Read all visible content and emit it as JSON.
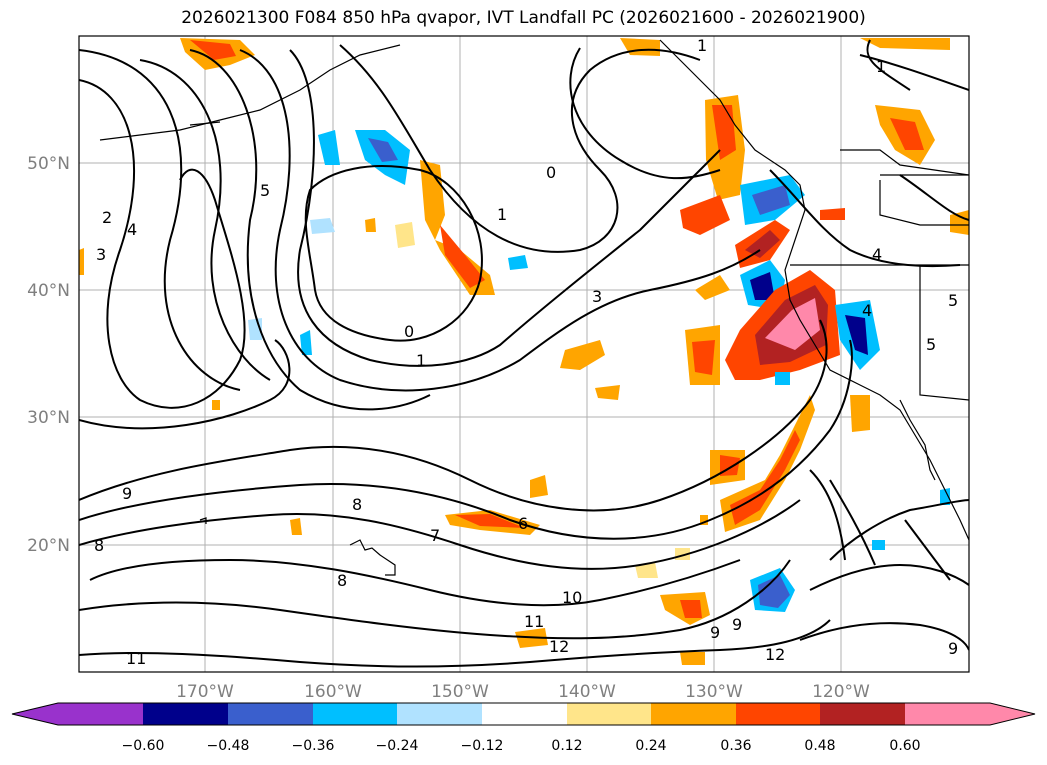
{
  "title": "2026021300 F084 850 hPa qvapor, IVT Landfall PC (2026021600 - 2026021900)",
  "map": {
    "lon_labels": [
      "170°W",
      "160°W",
      "150°W",
      "140°W",
      "130°W",
      "120°W"
    ],
    "lat_labels": [
      "50°N",
      "40°N",
      "30°N",
      "20°N"
    ],
    "contour_labels": [
      "0",
      "0",
      "1",
      "1",
      "1",
      "1",
      "2",
      "3",
      "3",
      "4",
      "4",
      "4",
      "5",
      "5",
      "5",
      "6",
      "7",
      "8",
      "8",
      "8",
      "9",
      "9",
      "9",
      "9",
      "10",
      "11",
      "11",
      "12",
      "12"
    ]
  },
  "colorbar": {
    "ticks": [
      "−0.60",
      "−0.48",
      "−0.36",
      "−0.24",
      "−0.12",
      "0.12",
      "0.24",
      "0.36",
      "0.48",
      "0.60"
    ],
    "colors": {
      "under": "#9932cc",
      "b1": "#00008b",
      "b2": "#3a5fcd",
      "b3": "#00bfff",
      "b4": "#b0e2ff",
      "b5": "#ffffff",
      "b6": "#ffffff",
      "b7": "#ffe58a",
      "b8": "#ffa500",
      "b9": "#ff4500",
      "b10": "#b22222",
      "over": "#ff88aa"
    }
  }
}
